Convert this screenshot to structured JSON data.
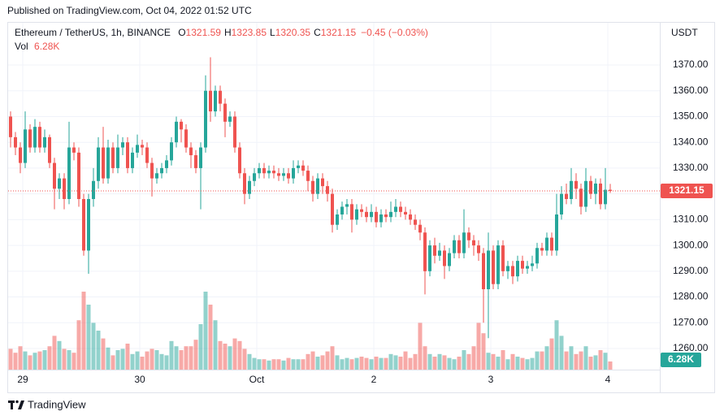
{
  "published": "Published on TradingView.com, Oct 04, 2022 01:52 UTC",
  "footer_brand": "TradingView",
  "chart_data": {
    "type": "candlestick",
    "symbol": "Ethereum / TetherUS, 1h, BINANCE",
    "currency": "USDT",
    "legend": [
      {
        "label": "O",
        "value": 1321.59
      },
      {
        "label": "H",
        "value": 1323.85
      },
      {
        "label": "L",
        "value": 1320.35
      },
      {
        "label": "C",
        "value": 1321.15
      }
    ],
    "change_label": "−0.45 (−0.03%)",
    "volume_title": "Vol",
    "volume_label": "6.28K",
    "up_color": "#26a69a",
    "down_color": "#ef5350",
    "grid": true,
    "ylim": [
      1251.8,
      1386.4
    ],
    "volume_lim": [
      0,
      160
    ],
    "yticks": [
      {
        "value": 1260,
        "label": "1260.00"
      },
      {
        "value": 1270,
        "label": "1270.00"
      },
      {
        "value": 1280,
        "label": "1280.00"
      },
      {
        "value": 1290,
        "label": "1290.00"
      },
      {
        "value": 1300,
        "label": "1300.00"
      },
      {
        "value": 1310,
        "label": "1310.00"
      },
      {
        "value": 1320,
        "label": "1320.00"
      },
      {
        "value": 1330,
        "label": "1330.00"
      },
      {
        "value": 1340,
        "label": "1340.00"
      },
      {
        "value": 1350,
        "label": "1350.00"
      },
      {
        "value": 1360,
        "label": "1360.00"
      },
      {
        "value": 1370,
        "label": "1370.00"
      }
    ],
    "xticks": [
      {
        "value": 2.5,
        "label": "29"
      },
      {
        "value": 26.5,
        "label": "30"
      },
      {
        "value": 50.5,
        "label": "Oct"
      },
      {
        "value": 74.5,
        "label": "2"
      },
      {
        "value": 98.5,
        "label": "3"
      },
      {
        "value": 122.5,
        "label": "4"
      }
    ],
    "open": [
      1350,
      1342,
      1338,
      1332,
      1345,
      1338,
      1346,
      1338,
      1342,
      1332,
      1322,
      1326,
      1318,
      1338,
      1336,
      1318,
      1298,
      1318,
      1325,
      1338,
      1326,
      1338,
      1330,
      1338,
      1340,
      1330,
      1336,
      1339,
      1338,
      1332,
      1326,
      1328,
      1330,
      1333,
      1340,
      1348,
      1345,
      1338,
      1335,
      1330,
      1338,
      1360,
      1352,
      1360,
      1355,
      1348,
      1350,
      1338,
      1328,
      1320,
      1325,
      1328,
      1330,
      1328,
      1329,
      1328,
      1327,
      1328,
      1326,
      1330,
      1331,
      1329,
      1325,
      1320,
      1326,
      1323,
      1320,
      1308,
      1312,
      1315,
      1316,
      1310,
      1314,
      1313,
      1311,
      1313,
      1309,
      1312,
      1311,
      1313,
      1315,
      1313,
      1312,
      1310,
      1308,
      1305,
      1290,
      1300,
      1296,
      1298,
      1292,
      1297,
      1302,
      1297,
      1305,
      1302,
      1300,
      1297,
      1283,
      1298,
      1285,
      1300,
      1290,
      1292,
      1288,
      1294,
      1291,
      1292,
      1293,
      1299,
      1298,
      1303,
      1298,
      1312,
      1320,
      1318,
      1325,
      1322,
      1315,
      1325,
      1320,
      1324,
      1316,
      1321.59
    ],
    "high": [
      1352,
      1344,
      1340,
      1352,
      1347,
      1349,
      1348,
      1345,
      1343,
      1334,
      1328,
      1328,
      1348,
      1340,
      1338,
      1320,
      1320,
      1330,
      1342,
      1346,
      1341,
      1340,
      1343,
      1342,
      1342,
      1338,
      1343,
      1341,
      1340,
      1334,
      1330,
      1332,
      1335,
      1342,
      1350,
      1349,
      1347,
      1340,
      1337,
      1340,
      1366,
      1373,
      1362,
      1362,
      1357,
      1352,
      1352,
      1340,
      1330,
      1327,
      1330,
      1332,
      1332,
      1331,
      1331,
      1330,
      1330,
      1330,
      1333,
      1333,
      1333,
      1331,
      1327,
      1328,
      1328,
      1325,
      1322,
      1314,
      1317,
      1318,
      1318,
      1316,
      1316,
      1315,
      1316,
      1315,
      1314,
      1314,
      1317,
      1318,
      1317,
      1315,
      1314,
      1312,
      1310,
      1307,
      1302,
      1303,
      1301,
      1300,
      1299,
      1304,
      1304,
      1314,
      1307,
      1304,
      1302,
      1299,
      1305,
      1300,
      1302,
      1302,
      1294,
      1294,
      1296,
      1296,
      1294,
      1296,
      1301,
      1301,
      1305,
      1305,
      1320,
      1323,
      1324,
      1330,
      1328,
      1324,
      1330,
      1327,
      1326,
      1326,
      1330,
      1323.85
    ],
    "low": [
      1338,
      1335,
      1328,
      1330,
      1336,
      1336,
      1336,
      1336,
      1330,
      1314,
      1318,
      1314,
      1316,
      1333,
      1315,
      1296,
      1289,
      1315,
      1322,
      1324,
      1324,
      1328,
      1328,
      1335,
      1328,
      1328,
      1334,
      1335,
      1330,
      1319,
      1324,
      1326,
      1328,
      1331,
      1338,
      1340,
      1336,
      1330,
      1328,
      1314,
      1336,
      1348,
      1350,
      1352,
      1342,
      1346,
      1336,
      1326,
      1316,
      1318,
      1323,
      1326,
      1326,
      1326,
      1326,
      1325,
      1325,
      1324,
      1324,
      1328,
      1327,
      1321,
      1317,
      1318,
      1320,
      1317,
      1305,
      1306,
      1310,
      1312,
      1305,
      1308,
      1311,
      1309,
      1309,
      1307,
      1307,
      1309,
      1309,
      1311,
      1311,
      1310,
      1308,
      1306,
      1302,
      1281,
      1288,
      1293,
      1294,
      1287,
      1290,
      1295,
      1295,
      1295,
      1299,
      1296,
      1294,
      1270,
      1264,
      1283,
      1283,
      1288,
      1287,
      1285,
      1286,
      1289,
      1289,
      1290,
      1291,
      1296,
      1296,
      1296,
      1296,
      1310,
      1316,
      1316,
      1318,
      1312,
      1313,
      1318,
      1316,
      1314,
      1314,
      1320.35
    ],
    "close": [
      1342,
      1338,
      1332,
      1345,
      1338,
      1346,
      1338,
      1342,
      1332,
      1322,
      1326,
      1318,
      1338,
      1336,
      1318,
      1298,
      1318,
      1325,
      1338,
      1326,
      1338,
      1330,
      1338,
      1340,
      1330,
      1336,
      1339,
      1338,
      1332,
      1326,
      1328,
      1330,
      1333,
      1340,
      1348,
      1345,
      1338,
      1335,
      1330,
      1338,
      1360,
      1352,
      1360,
      1355,
      1348,
      1350,
      1338,
      1328,
      1320,
      1325,
      1328,
      1330,
      1328,
      1329,
      1328,
      1327,
      1328,
      1326,
      1330,
      1331,
      1329,
      1325,
      1320,
      1326,
      1323,
      1320,
      1308,
      1312,
      1315,
      1316,
      1310,
      1314,
      1313,
      1311,
      1313,
      1309,
      1312,
      1311,
      1313,
      1315,
      1313,
      1312,
      1310,
      1308,
      1305,
      1290,
      1300,
      1296,
      1298,
      1292,
      1297,
      1302,
      1297,
      1305,
      1302,
      1300,
      1297,
      1283,
      1298,
      1285,
      1300,
      1290,
      1292,
      1288,
      1294,
      1291,
      1292,
      1293,
      1299,
      1298,
      1303,
      1298,
      1312,
      1320,
      1318,
      1325,
      1322,
      1315,
      1325,
      1320,
      1324,
      1316,
      1321.59,
      1321.15
    ],
    "volume": [
      16,
      13,
      18,
      14,
      11,
      13,
      14,
      15,
      18,
      26,
      22,
      16,
      15,
      13,
      38,
      60,
      50,
      36,
      30,
      24,
      17,
      11,
      15,
      16,
      20,
      12,
      14,
      10,
      14,
      16,
      15,
      12,
      11,
      22,
      18,
      15,
      18,
      18,
      23,
      35,
      60,
      50,
      38,
      22,
      20,
      18,
      24,
      22,
      16,
      12,
      9,
      8,
      8,
      7,
      8,
      8,
      7,
      9,
      8,
      8,
      8,
      12,
      14,
      10,
      11,
      14,
      18,
      11,
      8,
      9,
      8,
      9,
      10,
      9,
      8,
      10,
      9,
      9,
      12,
      11,
      10,
      14,
      9,
      12,
      36,
      18,
      12,
      10,
      12,
      11,
      9,
      8,
      10,
      15,
      12,
      18,
      36,
      28,
      13,
      12,
      10,
      15,
      8,
      12,
      10,
      9,
      8,
      9,
      14,
      14,
      18,
      24,
      38,
      26,
      14,
      18,
      12,
      14,
      18,
      10,
      11,
      15,
      13,
      6.28
    ]
  }
}
